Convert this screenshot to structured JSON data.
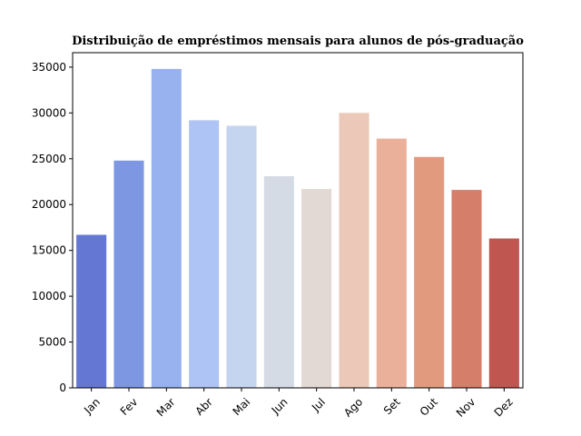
{
  "chart_data": {
    "type": "bar",
    "title": "Distribuição de empréstimos mensais para alunos de pós-graduação",
    "xlabel": "",
    "ylabel": "",
    "categories": [
      "Jan",
      "Fev",
      "Mar",
      "Abr",
      "Mai",
      "Jun",
      "Jul",
      "Ago",
      "Set",
      "Out",
      "Nov",
      "Dez"
    ],
    "values": [
      16700,
      24800,
      34800,
      29200,
      28600,
      23100,
      21700,
      30000,
      27200,
      25200,
      21600,
      16300
    ],
    "colors": [
      "#6477d3",
      "#7d97e3",
      "#98b2f0",
      "#aec4f5",
      "#c5d5ef",
      "#d5dbe4",
      "#e3d9d4",
      "#ebc8b7",
      "#ebb09a",
      "#e29a7f",
      "#d57e6a",
      "#bf5650"
    ],
    "ylim": [
      0,
      35000
    ],
    "yticks": [
      "0",
      "5000",
      "10000",
      "15000",
      "20000",
      "25000",
      "30000",
      "35000"
    ],
    "grid": false,
    "xtick_rotation": 45
  }
}
